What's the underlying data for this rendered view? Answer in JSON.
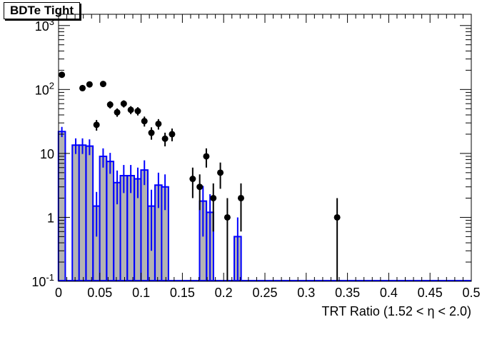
{
  "chart_data": {
    "type": "histogram",
    "title": "BDTe Tight",
    "xlabel": "TRT Ratio (1.52 <  η < 2.0)",
    "ylabel": "",
    "xlim": [
      0,
      0.5
    ],
    "ylim": [
      0.1,
      1500
    ],
    "yscale": "log",
    "grid": false,
    "x_ticks": [
      0,
      0.05,
      0.1,
      0.15,
      0.2,
      0.25,
      0.3,
      0.35,
      0.4,
      0.45,
      0.5
    ],
    "x_tick_labels": [
      "0",
      "0.05",
      "0.1",
      "0.15",
      "0.2",
      "0.25",
      "0.3",
      "0.35",
      "0.4",
      "0.45",
      "0.5"
    ],
    "y_ticks": [
      0.1,
      1,
      10,
      100,
      1000
    ],
    "y_tick_labels": [
      {
        "base": "10",
        "exp": "-1",
        "text": "10"
      },
      {
        "base": "1",
        "exp": "",
        "text": "1"
      },
      {
        "base": "10",
        "exp": "",
        "text": "10"
      },
      {
        "base": "10",
        "exp": "2",
        "text": "10"
      },
      {
        "base": "10",
        "exp": "3",
        "text": "10"
      }
    ],
    "series": [
      {
        "style": "filled-histogram",
        "color": "#0000ff",
        "fill": "#b3b3b3",
        "bin_width": 0.0083,
        "bins": [
          {
            "x": 0.004,
            "y": 22,
            "err": 4
          },
          {
            "x": 0.0125,
            "y": 0.1,
            "err": 0
          },
          {
            "x": 0.0208,
            "y": 13.5,
            "err": 3.7
          },
          {
            "x": 0.029,
            "y": 13.5,
            "err": 3.7
          },
          {
            "x": 0.0375,
            "y": 13,
            "err": 3.6
          },
          {
            "x": 0.046,
            "y": 1.5,
            "err": 1.0
          },
          {
            "x": 0.054,
            "y": 9,
            "err": 3
          },
          {
            "x": 0.0625,
            "y": 7.5,
            "err": 2.7
          },
          {
            "x": 0.071,
            "y": 3.5,
            "err": 1.9
          },
          {
            "x": 0.079,
            "y": 4.5,
            "err": 2.1
          },
          {
            "x": 0.0875,
            "y": 4.5,
            "err": 2.1
          },
          {
            "x": 0.096,
            "y": 4,
            "err": 2
          },
          {
            "x": 0.104,
            "y": 5.5,
            "err": 2.3
          },
          {
            "x": 0.1125,
            "y": 1.5,
            "err": 1.2
          },
          {
            "x": 0.121,
            "y": 3.2,
            "err": 1.8
          },
          {
            "x": 0.129,
            "y": 3.0,
            "err": 1.7
          },
          {
            "x": 0.175,
            "y": 1.8,
            "err": 1.3
          },
          {
            "x": 0.1835,
            "y": 1.2,
            "err": 1.1
          },
          {
            "x": 0.217,
            "y": 0.5,
            "err": 0.5
          }
        ]
      },
      {
        "style": "markers",
        "color": "#000000",
        "points": [
          {
            "x": 0.004,
            "y": 170,
            "err": 13
          },
          {
            "x": 0.029,
            "y": 105,
            "err": 10
          },
          {
            "x": 0.0375,
            "y": 120,
            "err": 11
          },
          {
            "x": 0.046,
            "y": 28,
            "err": 5.3
          },
          {
            "x": 0.054,
            "y": 122,
            "err": 11
          },
          {
            "x": 0.0625,
            "y": 58,
            "err": 7.6
          },
          {
            "x": 0.071,
            "y": 44,
            "err": 6.6
          },
          {
            "x": 0.079,
            "y": 60,
            "err": 7.7
          },
          {
            "x": 0.0875,
            "y": 48,
            "err": 6.9
          },
          {
            "x": 0.096,
            "y": 46,
            "err": 6.8
          },
          {
            "x": 0.104,
            "y": 32,
            "err": 5.7
          },
          {
            "x": 0.1125,
            "y": 21,
            "err": 4.6
          },
          {
            "x": 0.121,
            "y": 29,
            "err": 5.4
          },
          {
            "x": 0.129,
            "y": 17,
            "err": 4.1
          },
          {
            "x": 0.1375,
            "y": 20,
            "err": 4.5
          },
          {
            "x": 0.1625,
            "y": 4,
            "err": 2
          },
          {
            "x": 0.171,
            "y": 3,
            "err": 1.7
          },
          {
            "x": 0.179,
            "y": 9,
            "err": 3
          },
          {
            "x": 0.1875,
            "y": 2,
            "err": 1.4
          },
          {
            "x": 0.196,
            "y": 5,
            "err": 2.2
          },
          {
            "x": 0.2045,
            "y": 1,
            "err": 1
          },
          {
            "x": 0.221,
            "y": 2,
            "err": 1.4
          },
          {
            "x": 0.3375,
            "y": 1,
            "err": 1
          }
        ]
      }
    ]
  }
}
